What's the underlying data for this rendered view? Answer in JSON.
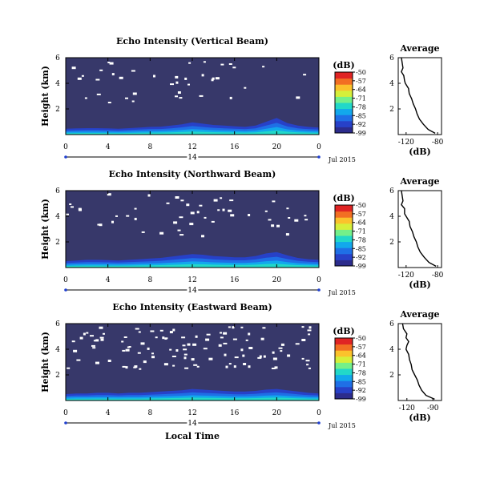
{
  "figure": {
    "xlabel": "Local Time",
    "date_label": "Jul 2015",
    "day_label": "14",
    "colorbar_label": "(dB)",
    "avg_title": "Average",
    "avg_xlabel": "(dB)"
  },
  "colors": {
    "background": "#37386a",
    "colormap": [
      "#2c2c8c",
      "#2741c8",
      "#1f6fe6",
      "#12a8ec",
      "#22d8c9",
      "#74f08a",
      "#d6ef3a",
      "#fbc22c",
      "#f26f23",
      "#e02424"
    ]
  },
  "chart_data": [
    {
      "type": "heatmap",
      "title": "Echo Intensity (Vertical Beam)",
      "ylabel": "Height (km)",
      "x_ticks": [
        "0",
        "4",
        "8",
        "12",
        "16",
        "20",
        "0"
      ],
      "y_ticks": [
        "6",
        "4",
        "2"
      ],
      "xlim": [
        0,
        24
      ],
      "ylim": [
        0,
        6
      ],
      "colorbar_ticks": [
        "-50",
        "-57",
        "-64",
        "-71",
        "-78",
        "-85",
        "-92",
        "-99"
      ],
      "colorbar_range": [
        -99,
        -50
      ],
      "surface_layer_top_km": [
        0.45,
        0.48,
        0.5,
        0.5,
        0.48,
        0.45,
        0.5,
        0.55,
        0.6,
        0.62,
        0.7,
        0.8,
        0.95,
        0.85,
        0.75,
        0.7,
        0.65,
        0.6,
        0.7,
        1.0,
        1.3,
        0.9,
        0.7,
        0.6,
        0.55
      ],
      "avg_x_ticks": [
        "-120",
        "-80"
      ],
      "avg_y_ticks": [
        "6",
        "4",
        "2"
      ],
      "avg_xlim": [
        -130,
        -75
      ],
      "avg_profile_height_km": [
        6.0,
        5.6,
        5.2,
        4.9,
        4.6,
        4.2,
        4.0,
        3.6,
        3.2,
        2.8,
        2.4,
        2.0,
        1.6,
        1.2,
        0.8,
        0.4,
        0.1
      ],
      "avg_profile_db": [
        -126,
        -125,
        -124,
        -126,
        -123,
        -122,
        -121,
        -117,
        -116,
        -113,
        -111,
        -108,
        -106,
        -103,
        -98,
        -92,
        -83
      ]
    },
    {
      "type": "heatmap",
      "title": "Echo Intensity (Northward Beam)",
      "ylabel": "Height (km)",
      "x_ticks": [
        "0",
        "4",
        "8",
        "12",
        "16",
        "20",
        "0"
      ],
      "y_ticks": [
        "6",
        "4",
        "2"
      ],
      "xlim": [
        0,
        24
      ],
      "ylim": [
        0,
        6
      ],
      "colorbar_ticks": [
        "-50",
        "-57",
        "-64",
        "-71",
        "-78",
        "-85",
        "-92",
        "-99"
      ],
      "colorbar_range": [
        -99,
        -50
      ],
      "surface_layer_top_km": [
        0.5,
        0.55,
        0.6,
        0.6,
        0.58,
        0.55,
        0.6,
        0.65,
        0.7,
        0.75,
        0.85,
        0.95,
        1.05,
        1.0,
        0.9,
        0.85,
        0.8,
        0.8,
        0.9,
        1.1,
        1.2,
        0.95,
        0.75,
        0.65,
        0.6
      ],
      "avg_x_ticks": [
        "-120",
        "-80"
      ],
      "avg_y_ticks": [
        "6",
        "4",
        "2"
      ],
      "avg_xlim": [
        -130,
        -75
      ],
      "avg_profile_height_km": [
        6.0,
        5.6,
        5.2,
        4.9,
        4.6,
        4.2,
        4.0,
        3.6,
        3.2,
        2.8,
        2.4,
        2.0,
        1.6,
        1.2,
        0.8,
        0.4,
        0.1
      ],
      "avg_profile_db": [
        -126,
        -125,
        -124,
        -126,
        -122,
        -122,
        -120,
        -116,
        -115,
        -112,
        -110,
        -107,
        -105,
        -102,
        -97,
        -91,
        -82
      ]
    },
    {
      "type": "heatmap",
      "title": "Echo Intensity (Eastward Beam)",
      "ylabel": "Height (km)",
      "x_ticks": [
        "0",
        "4",
        "8",
        "12",
        "16",
        "20",
        "0"
      ],
      "y_ticks": [
        "6",
        "4",
        "2"
      ],
      "xlim": [
        0,
        24
      ],
      "ylim": [
        0,
        6
      ],
      "colorbar_ticks": [
        "-50",
        "-57",
        "-64",
        "-71",
        "-78",
        "-85",
        "-92",
        "-99"
      ],
      "colorbar_range": [
        -99,
        -50
      ],
      "surface_layer_top_km": [
        0.5,
        0.55,
        0.55,
        0.6,
        0.6,
        0.55,
        0.6,
        0.6,
        0.65,
        0.7,
        0.75,
        0.8,
        0.9,
        0.85,
        0.8,
        0.75,
        0.7,
        0.7,
        0.75,
        0.85,
        0.9,
        0.8,
        0.7,
        0.6,
        0.55
      ],
      "avg_x_ticks": [
        "-120",
        "-90"
      ],
      "avg_y_ticks": [
        "6",
        "4",
        "2"
      ],
      "avg_xlim": [
        -130,
        -80
      ],
      "avg_profile_height_km": [
        6.0,
        5.6,
        5.2,
        4.9,
        4.6,
        4.3,
        4.0,
        3.6,
        3.2,
        2.8,
        2.4,
        2.0,
        1.6,
        1.2,
        0.8,
        0.4,
        0.1
      ],
      "avg_profile_db": [
        -125,
        -124,
        -120,
        -121,
        -118,
        -120,
        -121,
        -118,
        -117,
        -115,
        -114,
        -111,
        -108,
        -106,
        -103,
        -98,
        -88
      ]
    }
  ]
}
